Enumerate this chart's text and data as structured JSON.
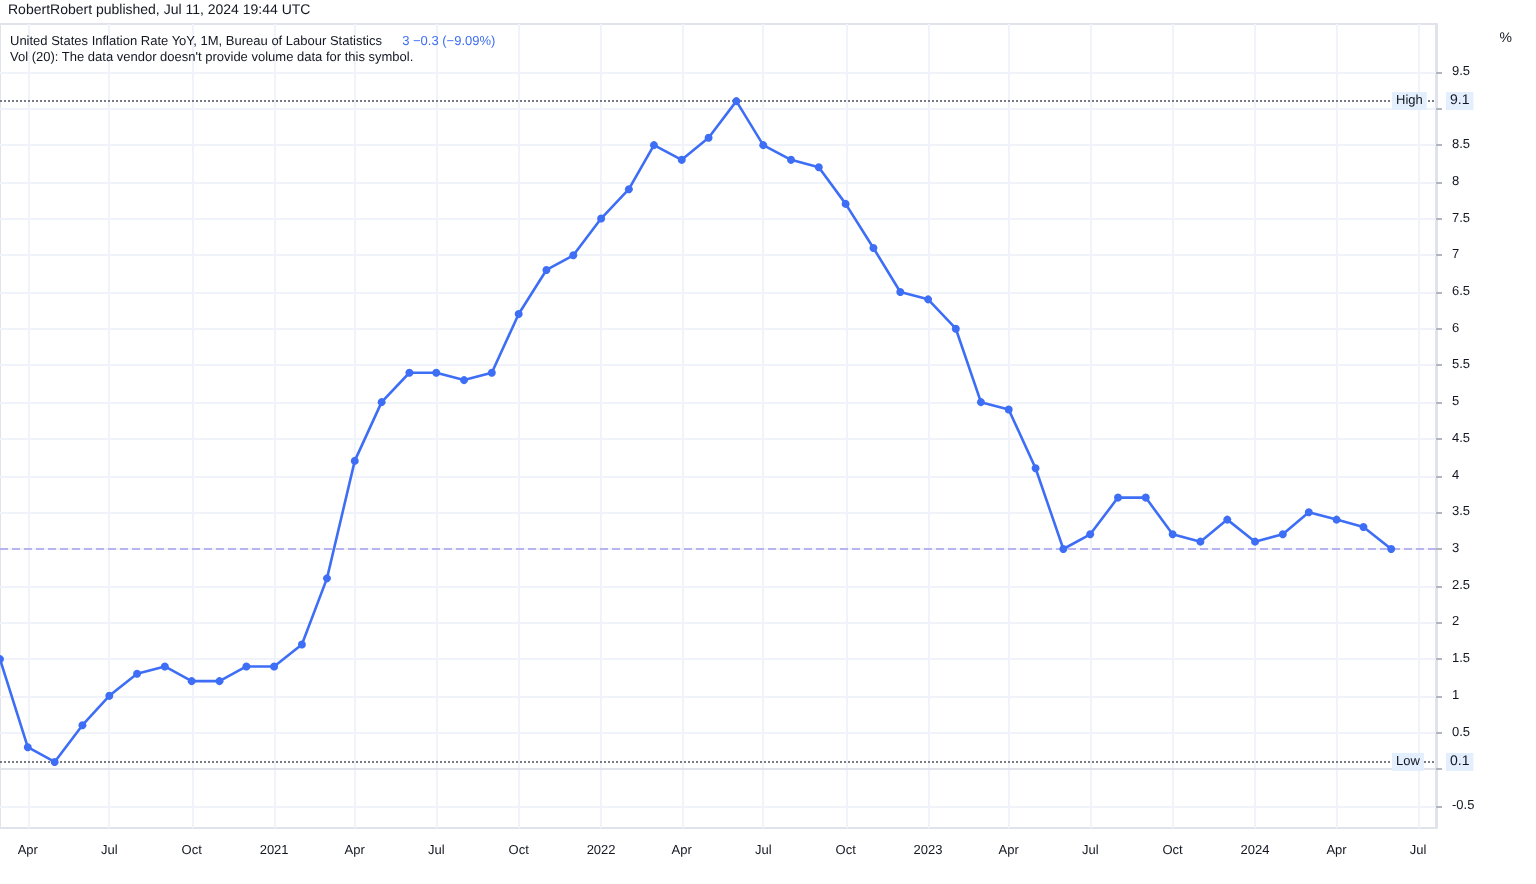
{
  "chart_data": {
    "type": "line",
    "title": "United States Inflation Rate YoY, 1M, Bureau of Labour Statistics",
    "subtitle": "Vol (20): The data vendor doesn't provide volume data for this symbol.",
    "ylabel": "%",
    "annotations": [
      "RobertRobert published, Jul 11, 2024 19:44 UTC",
      "3 −0.3 (−9.09%)",
      "9.1",
      "0.1"
    ],
    "x": [
      "2020-03",
      "2020-04",
      "2020-05",
      "2020-06",
      "2020-07",
      "2020-08",
      "2020-09",
      "2020-10",
      "2020-11",
      "2020-12",
      "2021-01",
      "2021-02",
      "2021-03",
      "2021-04",
      "2021-05",
      "2021-06",
      "2021-07",
      "2021-08",
      "2021-09",
      "2021-10",
      "2021-11",
      "2021-12",
      "2022-01",
      "2022-02",
      "2022-03",
      "2022-04",
      "2022-05",
      "2022-06",
      "2022-07",
      "2022-08",
      "2022-09",
      "2022-10",
      "2022-11",
      "2022-12",
      "2023-01",
      "2023-02",
      "2023-03",
      "2023-04",
      "2023-05",
      "2023-06",
      "2023-07",
      "2023-08",
      "2023-09",
      "2023-10",
      "2023-11",
      "2023-12",
      "2024-01",
      "2024-02",
      "2024-03",
      "2024-04",
      "2024-05",
      "2024-06"
    ],
    "series": [
      {
        "color": "#3d6ef5",
        "values": [
          1.5,
          0.3,
          0.1,
          0.6,
          1.0,
          1.3,
          1.4,
          1.2,
          1.2,
          1.4,
          1.4,
          1.7,
          2.6,
          4.2,
          5.0,
          5.4,
          5.4,
          5.3,
          5.4,
          6.2,
          6.8,
          7.0,
          7.5,
          7.9,
          8.5,
          8.3,
          8.6,
          9.1,
          8.5,
          8.3,
          8.2,
          7.7,
          7.1,
          6.5,
          6.4,
          6.0,
          5.0,
          4.9,
          4.1,
          3.0,
          3.2,
          3.7,
          3.7,
          3.2,
          3.1,
          3.4,
          3.1,
          3.2,
          3.5,
          3.4,
          3.3,
          3.0
        ]
      }
    ],
    "xlim": [
      "2020-03",
      "2024-07-21"
    ],
    "xticks": [
      {
        "value": "2020-04",
        "label": "Apr"
      },
      {
        "value": "2020-07",
        "label": "Jul"
      },
      {
        "value": "2020-10",
        "label": "Oct"
      },
      {
        "value": "2021-01",
        "label": "2021"
      },
      {
        "value": "2021-04",
        "label": "Apr"
      },
      {
        "value": "2021-07",
        "label": "Jul"
      },
      {
        "value": "2021-10",
        "label": "Oct"
      },
      {
        "value": "2022-01",
        "label": "2022"
      },
      {
        "value": "2022-04",
        "label": "Apr"
      },
      {
        "value": "2022-07",
        "label": "Jul"
      },
      {
        "value": "2022-10",
        "label": "Oct"
      },
      {
        "value": "2023-01",
        "label": "2023"
      },
      {
        "value": "2023-04",
        "label": "Apr"
      },
      {
        "value": "2023-07",
        "label": "Jul"
      },
      {
        "value": "2023-10",
        "label": "Oct"
      },
      {
        "value": "2024-01",
        "label": "2024"
      },
      {
        "value": "2024-04",
        "label": "Apr"
      },
      {
        "value": "2024-07",
        "label": "Jul"
      }
    ],
    "ylim": [
      -0.8,
      10.15
    ],
    "yticks": [
      -0.5,
      {
        "value": 0,
        "label": null
      },
      0.5,
      1,
      1.5,
      2,
      2.5,
      3,
      3.5,
      4,
      4.5,
      5,
      5.5,
      6,
      6.5,
      7,
      7.5,
      8,
      8.5,
      {
        "value": 9,
        "label": null
      },
      9.5
    ],
    "ref_lines": [
      {
        "axis": "y",
        "value": 9.1,
        "label": "High",
        "color": "#787b86",
        "line_style": "dotted"
      },
      {
        "axis": "y",
        "value": 0.1,
        "label": "Low",
        "color": "#787b86",
        "line_style": "dotted"
      },
      {
        "axis": "y",
        "value": 3,
        "label": null,
        "color": "#b7b4f0",
        "line_style": "dashed"
      }
    ],
    "grid": true,
    "legend": false,
    "marker": "circle",
    "line_style": "solid"
  }
}
